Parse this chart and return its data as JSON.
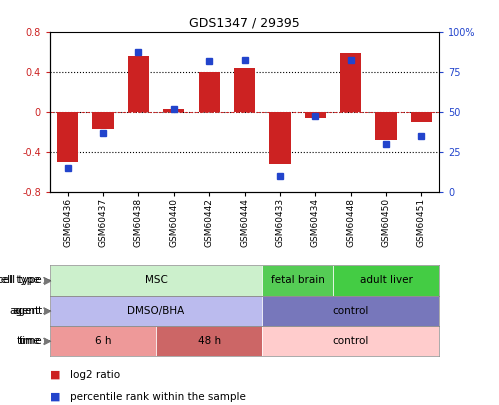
{
  "title": "GDS1347 / 29395",
  "samples": [
    "GSM60436",
    "GSM60437",
    "GSM60438",
    "GSM60440",
    "GSM60442",
    "GSM60444",
    "GSM60433",
    "GSM60434",
    "GSM60448",
    "GSM60450",
    "GSM60451"
  ],
  "log2_ratio": [
    -0.5,
    -0.17,
    0.56,
    0.03,
    0.4,
    0.44,
    -0.52,
    -0.06,
    0.59,
    -0.28,
    -0.1
  ],
  "pct_rank": [
    15,
    37,
    88,
    52,
    82,
    83,
    10,
    48,
    83,
    30,
    35
  ],
  "ylim": [
    -0.8,
    0.8
  ],
  "pct_ylim": [
    0,
    100
  ],
  "bar_color": "#cc2222",
  "dot_color": "#2244cc",
  "cell_type_groups": [
    {
      "label": "MSC",
      "start": 0,
      "end": 5,
      "color": "#ccf0cc"
    },
    {
      "label": "fetal brain",
      "start": 6,
      "end": 7,
      "color": "#55cc55"
    },
    {
      "label": "adult liver",
      "start": 8,
      "end": 10,
      "color": "#44cc44"
    }
  ],
  "agent_groups": [
    {
      "label": "DMSO/BHA",
      "start": 0,
      "end": 5,
      "color": "#bbbbee"
    },
    {
      "label": "control",
      "start": 6,
      "end": 10,
      "color": "#7777bb"
    }
  ],
  "time_groups": [
    {
      "label": "6 h",
      "start": 0,
      "end": 2,
      "color": "#ee9999"
    },
    {
      "label": "48 h",
      "start": 3,
      "end": 5,
      "color": "#cc6666"
    },
    {
      "label": "control",
      "start": 6,
      "end": 10,
      "color": "#ffcccc"
    }
  ],
  "legend_items": [
    {
      "label": "log2 ratio",
      "color": "#cc2222"
    },
    {
      "label": "percentile rank within the sample",
      "color": "#2244cc"
    }
  ]
}
